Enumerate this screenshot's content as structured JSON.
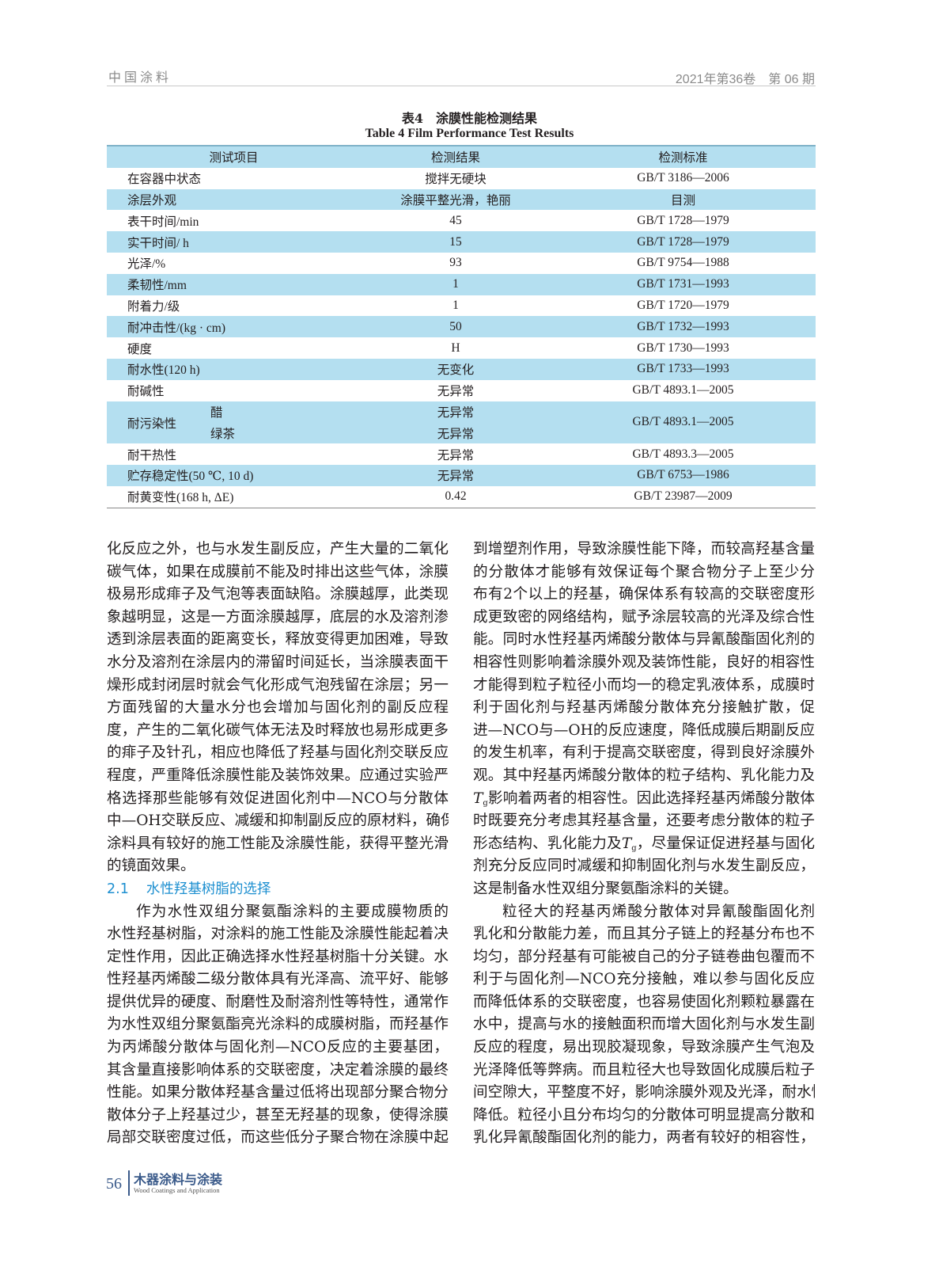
{
  "header": {
    "journal": "中国涂料",
    "issue": "2021年第36卷　第 06 期"
  },
  "table": {
    "caption_cn": "表4　涂膜性能检测结果",
    "caption_en": "Table 4   Film Performance Test Results",
    "columns": [
      "测试项目",
      "检测结果",
      "检测标准"
    ],
    "rows": [
      {
        "item": "在容器中状态",
        "result": "搅拌无硬块",
        "standard": "GB/T 3186—2006"
      },
      {
        "item": "涂层外观",
        "result": "涂膜平整光滑，艳丽",
        "standard": "目测"
      },
      {
        "item": "表干时间/min",
        "result": "45",
        "standard": "GB/T 1728—1979"
      },
      {
        "item": "实干时间/ h",
        "result": "15",
        "standard": "GB/T 1728—1979"
      },
      {
        "item": "光泽/%",
        "result": "93",
        "standard": "GB/T 9754—1988"
      },
      {
        "item": "柔韧性/mm",
        "result": "1",
        "standard": "GB/T 1731—1993"
      },
      {
        "item": "附着力/级",
        "result": "1",
        "standard": "GB/T 1720—1979"
      },
      {
        "item": "耐冲击性/(kg · cm)",
        "result": "50",
        "standard": "GB/T 1732—1993"
      },
      {
        "item": "硬度",
        "result": "H",
        "standard": "GB/T 1730—1993"
      },
      {
        "item": "耐水性(120 h)",
        "result": "无变化",
        "standard": "GB/T 1733—1993"
      },
      {
        "item": "耐碱性",
        "result": "无异常",
        "standard": "GB/T 4893.1—2005"
      },
      {
        "item": "耐污染性",
        "sub": [
          {
            "name": "醋",
            "result": "无异常"
          },
          {
            "name": "绿茶",
            "result": "无异常"
          }
        ],
        "standard": "GB/T 4893.1—2005"
      },
      {
        "item": "耐干热性",
        "result": "无异常",
        "standard": "GB/T 4893.3—2005"
      },
      {
        "item": "贮存稳定性(50 ℃, 10 d)",
        "result": "无异常",
        "standard": "GB/T 6753—1986"
      },
      {
        "item": "耐黄变性(168 h, ΔE)",
        "result": "0.42",
        "standard": "GB/T 23987—2009"
      }
    ]
  },
  "body": {
    "left": [
      "化反应之外，也与水发生副反应，产生大量的二氧化",
      "碳气体，如果在成膜前不能及时排出这些气体，涂膜",
      "极易形成痱子及气泡等表面缺陷。涂膜越厚，此类现",
      "象越明显，这是一方面涂膜越厚，底层的水及溶剂渗",
      "透到涂层表面的距离变长，释放变得更加困难，导致",
      "水分及溶剂在涂层内的滞留时间延长，当涂膜表面干",
      "燥形成封闭层时就会气化形成气泡残留在涂层；另一",
      "方面残留的大量水分也会增加与固化剂的副反应程",
      "度，产生的二氧化碳气体无法及时释放也易形成更多",
      "的痱子及针孔，相应也降低了羟基与固化剂交联反应",
      "程度，严重降低涂膜性能及装饰效果。应通过实验严",
      "格选择那些能够有效促进固化剂中—NCO与分散体",
      "中—OH交联反应、减缓和抑制副反应的原材料，确保",
      "涂料具有较好的施工性能及涂膜性能，获得平整光滑",
      {
        "text": "的镜面效果。",
        "last": true
      },
      {
        "section": "2.1",
        "title": "水性羟基树脂的选择"
      },
      {
        "text": "作为水性双组分聚氨酯涂料的主要成膜物质的",
        "indent": true
      },
      "水性羟基树脂，对涂料的施工性能及涂膜性能起着决",
      "定性作用，因此正确选择水性羟基树脂十分关键。水",
      "性羟基丙烯酸二级分散体具有光泽高、流平好、能够",
      "提供优异的硬度、耐磨性及耐溶剂性等特性，通常作",
      "为水性双组分聚氨酯亮光涂料的成膜树脂，而羟基作",
      "为丙烯酸分散体与固化剂—NCO反应的主要基团，",
      "其含量直接影响体系的交联密度，决定着涂膜的最终",
      "性能。如果分散体羟基含量过低将出现部分聚合物分",
      "散体分子上羟基过少，甚至无羟基的现象，使得涂膜",
      "局部交联密度过低，而这些低分子聚合物在涂膜中起"
    ],
    "right": [
      "到增塑剂作用，导致涂膜性能下降，而较高羟基含量",
      "的分散体才能够有效保证每个聚合物分子上至少分",
      "布有2个以上的羟基，确保体系有较高的交联密度形",
      "成更致密的网络结构，赋予涂层较高的光泽及综合性",
      "能。同时水性羟基丙烯酸分散体与异氰酸酯固化剂的",
      "相容性则影响着涂膜外观及装饰性能，良好的相容性",
      "才能得到粒子粒径小而均一的稳定乳液体系，成膜时",
      "利于固化剂与羟基丙烯酸分散体充分接触扩散，促",
      "进—NCO与—OH的反应速度，降低成膜后期副反应",
      "的发生机率，有利于提高交联密度，得到良好涂膜外",
      "观。其中羟基丙烯酸分散体的粒子结构、乳化能力及",
      {
        "pre": "",
        "var": "T",
        "sub": "g",
        "post": "影响着两者的相容性。因此选择羟基丙烯酸分散体"
      },
      "时既要充分考虑其羟基含量，还要考虑分散体的粒子",
      {
        "pre": "形态结构、乳化能力及",
        "var": "T",
        "sub": "g",
        "post": "，尽量保证促进羟基与固化"
      },
      "剂充分反应同时减缓和抑制固化剂与水发生副反应，",
      {
        "text": "这是制备水性双组分聚氨酯涂料的关键。",
        "last": true
      },
      {
        "text": "粒径大的羟基丙烯酸分散体对异氰酸酯固化剂",
        "indent": true
      },
      "乳化和分散能力差，而且其分子链上的羟基分布也不",
      "均匀，部分羟基有可能被自己的分子链卷曲包覆而不",
      "利于与固化剂—NCO充分接触，难以参与固化反应",
      "而降低体系的交联密度，也容易使固化剂颗粒暴露在",
      "水中，提高与水的接触面积而增大固化剂与水发生副",
      "反应的程度，易出现胶凝现象，导致涂膜产生气泡及",
      "光泽降低等弊病。而且粒径大也导致固化成膜后粒子",
      "间空隙大，平整度不好，影响涂膜外观及光泽，耐水性",
      "降低。粒径小且分布均匀的分散体可明显提高分散和",
      "乳化异氰酸酯固化剂的能力，两者有较好的相容性，"
    ]
  },
  "footer": {
    "page": "56",
    "journal_cn": "木器涂料与涂装",
    "journal_en": "Wood Coatings and Application"
  },
  "colors": {
    "table_shade": "#b4dff0",
    "section_heading": "#1d8fd0",
    "footer": "#3a5a8a"
  }
}
